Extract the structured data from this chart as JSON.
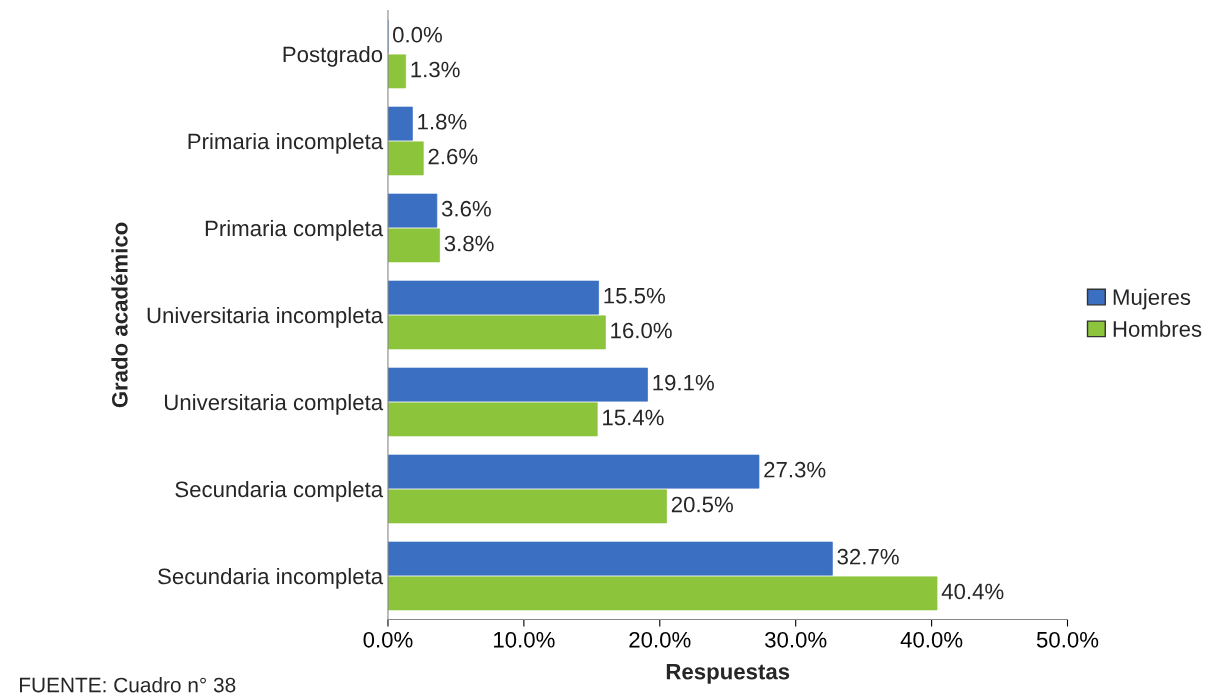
{
  "chart_data": {
    "type": "bar",
    "orientation": "horizontal",
    "categories": [
      "Postgrado",
      "Primaria incompleta",
      "Primaria completa",
      "Universitaria incompleta",
      "Universitaria completa",
      "Secundaria completa",
      "Secundaria incompleta"
    ],
    "series": [
      {
        "name": "Mujeres",
        "color": "#3a6fc2",
        "values": [
          0.0,
          1.8,
          3.6,
          15.5,
          19.1,
          27.3,
          32.7
        ],
        "value_labels": [
          "0.0%",
          "1.8%",
          "3.6%",
          "15.5%",
          "19.1%",
          "27.3%",
          "32.7%"
        ]
      },
      {
        "name": "Hombres",
        "color": "#8cc43c",
        "values": [
          1.3,
          2.6,
          3.8,
          16.0,
          15.4,
          20.5,
          40.4
        ],
        "value_labels": [
          "1.3%",
          "2.6%",
          "3.8%",
          "16.0%",
          "15.4%",
          "20.5%",
          "40.4%"
        ]
      }
    ],
    "xlim": [
      0,
      50
    ],
    "xticks": [
      {
        "value": 0,
        "label": "0.0%"
      },
      {
        "value": 10,
        "label": "10.0%"
      },
      {
        "value": 20,
        "label": "20.0%"
      },
      {
        "value": 30,
        "label": "30.0%"
      },
      {
        "value": 40,
        "label": "40.0%"
      },
      {
        "value": 50,
        "label": "50.0%"
      }
    ],
    "xlabel": "Respuestas",
    "ylabel": "Grado académico",
    "legend": "right",
    "annotations": [
      "FUENTE: Cuadro n° 38"
    ]
  }
}
